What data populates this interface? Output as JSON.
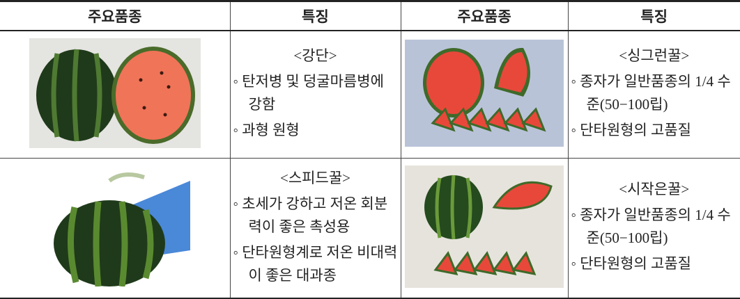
{
  "table": {
    "header": [
      "주요품종",
      "특징",
      "주요품종",
      "특징"
    ],
    "rows": [
      [
        {
          "name": "<강단>",
          "bullets": [
            "◦ 탄저병 및 덩굴마름병에 강함",
            "◦ 과형 원형"
          ]
        },
        {
          "name": "<싱그런꿀>",
          "bullets": [
            "◦ 종자가 일반품종의 1/4 수준(50−100립)",
            "◦ 단타원형의 고품질"
          ]
        }
      ],
      [
        {
          "name": "<스피드꿀>",
          "bullets": [
            "◦ 초세가 강하고 저온 회분력이 좋은 촉성용",
            "◦ 단타원형계로 저온 비대력이 좋은 대과종"
          ]
        },
        {
          "name": "<시작은꿀>",
          "bullets": [
            "◦ 종자가 일반품종의 1/4 수준(50−100립)",
            "◦ 단타원형의 고품질"
          ]
        }
      ]
    ]
  }
}
